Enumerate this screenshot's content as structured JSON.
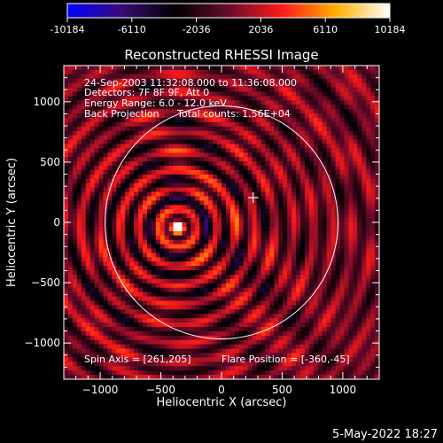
{
  "figure": {
    "title": "Reconstructed RHESSI Image",
    "xlabel": "Heliocentric X (arcsec)",
    "ylabel": "Heliocentric Y (arcsec)",
    "timestamp": "5-May-2022 18:27"
  },
  "annotations": {
    "time_range": "24-Sep-2003 11:32:08.000 to 11:36:08.000",
    "detectors": "Detectors: 7F 8F 9F, Att 0",
    "energy": "Energy Range: 6.0 - 12.0 keV",
    "method": "Back Projection",
    "counts": "Total counts: 1.56E+04",
    "spin_axis": "Spin Axis = [261,205]",
    "flare_position": "Flare Position = [-360,-45]"
  },
  "colorbar": {
    "ticks": [
      "-10184",
      "-6110",
      "-2036",
      "2036",
      "6110",
      "10184"
    ],
    "range": [
      -10184,
      10184
    ],
    "colors": [
      "#0000ff",
      "#3a0a7a",
      "#000000",
      "#6a0a2a",
      "#ff1a1a",
      "#ffb000",
      "#ffffff"
    ]
  },
  "chart_data": {
    "type": "heatmap",
    "title": "Reconstructed RHESSI Image",
    "xlabel": "Heliocentric X (arcsec)",
    "ylabel": "Heliocentric Y (arcsec)",
    "xlim": [
      -1300,
      1300
    ],
    "ylim": [
      -1300,
      1300
    ],
    "xticks": [
      -1000,
      -500,
      0,
      500,
      1000
    ],
    "yticks": [
      -1000,
      -500,
      0,
      500,
      1000
    ],
    "xtick_labels": [
      "−1000",
      "−500",
      "0",
      "500",
      "1000"
    ],
    "ytick_labels": [
      "−1000",
      "−500",
      "0",
      "500",
      "1000"
    ],
    "value_range": [
      -10184,
      10184
    ],
    "source_peak": {
      "x": -360,
      "y": -45,
      "value": 10184
    },
    "spin_axis": {
      "x": 261,
      "y": 205
    },
    "solar_disk": {
      "center_x": 0,
      "center_y": 0,
      "radius": 960
    },
    "ring_spacing": 160
  }
}
